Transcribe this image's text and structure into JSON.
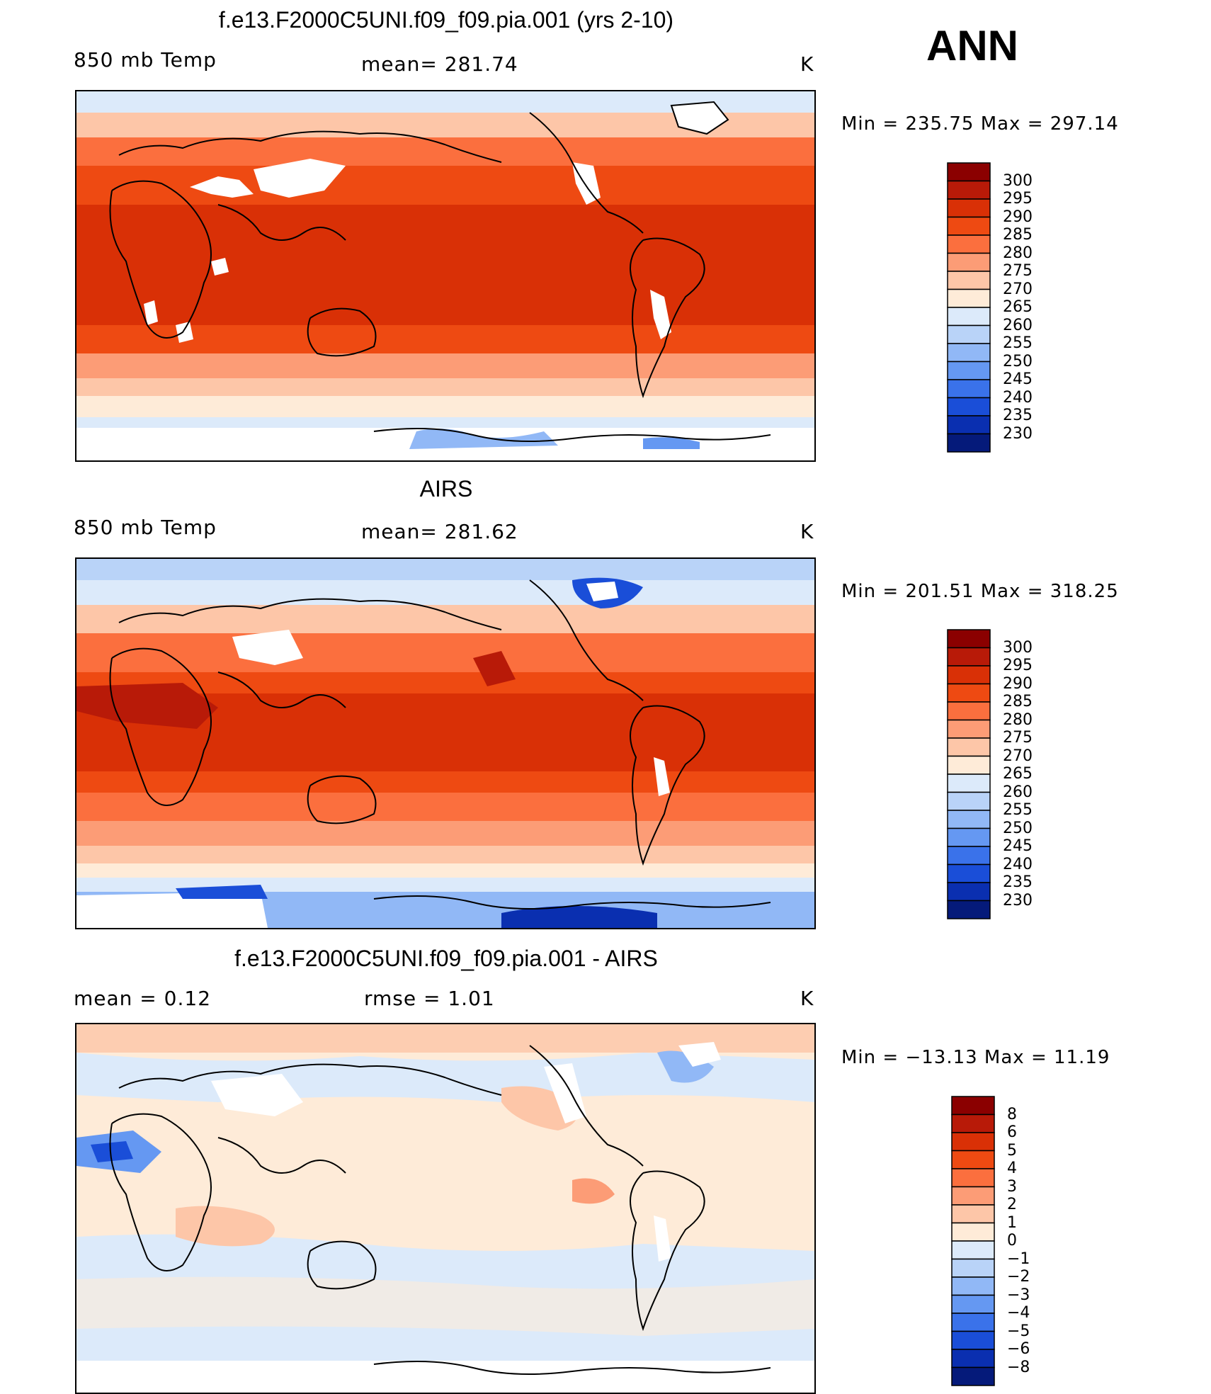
{
  "season": "ANN",
  "panels": [
    {
      "id": "model",
      "title": "f.e13.F2000C5UNI.f09_f09.pia.001 (yrs 2-10)",
      "left_label": "850 mb Temp",
      "mid_label": "mean=  281.74",
      "units": "K",
      "minmax": "Min  =  235.75  Max  =  297.14",
      "colorbar": [
        "300",
        "295",
        "290",
        "285",
        "280",
        "275",
        "270",
        "265",
        "260",
        "255",
        "250",
        "245",
        "240",
        "235",
        "230"
      ],
      "colors": [
        "#8b0000",
        "#b81a08",
        "#d93006",
        "#ee4a12",
        "#fb6f3e",
        "#fc9c76",
        "#fdc6a8",
        "#feebd8",
        "#dceafa",
        "#b9d3f8",
        "#91b8f6",
        "#6598f2",
        "#3a72ea",
        "#1a4ed8",
        "#0a2fb0",
        "#051a7a"
      ]
    },
    {
      "id": "obs",
      "title": "AIRS",
      "left_label": "850 mb Temp",
      "mid_label": "mean=  281.62",
      "units": "K",
      "minmax": "Min  =  201.51  Max  =  318.25",
      "colorbar": [
        "300",
        "295",
        "290",
        "285",
        "280",
        "275",
        "270",
        "265",
        "260",
        "255",
        "250",
        "245",
        "240",
        "235",
        "230"
      ],
      "colors": [
        "#8b0000",
        "#b81a08",
        "#d93006",
        "#ee4a12",
        "#fb6f3e",
        "#fc9c76",
        "#fdc6a8",
        "#feebd8",
        "#dceafa",
        "#b9d3f8",
        "#91b8f6",
        "#6598f2",
        "#3a72ea",
        "#1a4ed8",
        "#0a2fb0",
        "#051a7a"
      ]
    },
    {
      "id": "diff",
      "title": "f.e13.F2000C5UNI.f09_f09.pia.001 - AIRS",
      "left_label": "mean  =     0.12",
      "mid_label": "rmse  =     1.01",
      "units": "K",
      "minmax": "Min  =  −13.13  Max  =     11.19",
      "colorbar": [
        "8",
        "6",
        "5",
        "4",
        "3",
        "2",
        "1",
        "0",
        "−1",
        "−2",
        "−3",
        "−4",
        "−5",
        "−6",
        "−8"
      ],
      "colors": [
        "#8b0000",
        "#b81a08",
        "#d93006",
        "#ee4a12",
        "#fb6f3e",
        "#fc9c76",
        "#fdc6a8",
        "#feebd8",
        "#dceafa",
        "#b9d3f8",
        "#91b8f6",
        "#6598f2",
        "#3a72ea",
        "#1a4ed8",
        "#0a2fb0",
        "#051a7a"
      ]
    }
  ]
}
